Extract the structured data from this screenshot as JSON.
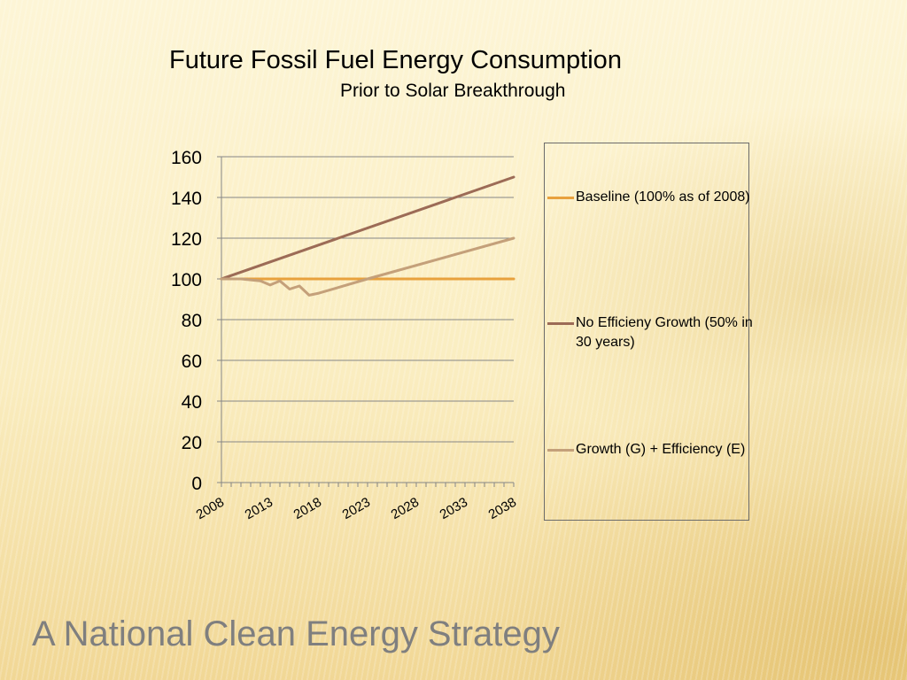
{
  "slide": {
    "footer_title": "A National Clean Energy Strategy"
  },
  "colors": {
    "baseline": "#e8a13d",
    "no_efficiency": "#9c6b56",
    "growth_efficiency": "#c4a07a",
    "gridline": "#868686",
    "axis": "#868686"
  },
  "chart_data": {
    "type": "line",
    "title": "Future Fossil Fuel Energy Consumption",
    "subtitle": "Prior to Solar Breakthrough",
    "xlabel": "",
    "ylabel": "",
    "xlim": [
      2008,
      2038
    ],
    "ylim": [
      0,
      160
    ],
    "x_ticks": [
      "2008",
      "2013",
      "2018",
      "2023",
      "2028",
      "2033",
      "2038"
    ],
    "y_ticks": [
      "0",
      "20",
      "40",
      "60",
      "80",
      "100",
      "120",
      "140",
      "160"
    ],
    "grid": "horizontal",
    "legend_position": "right",
    "series": [
      {
        "name": "Baseline (100% as of 2008)",
        "x": [
          2008,
          2038
        ],
        "values": [
          100,
          100
        ]
      },
      {
        "name": "No Efficieny Growth (50% in 30 years)",
        "x": [
          2008,
          2038
        ],
        "values": [
          100,
          150
        ]
      },
      {
        "name": "Growth (G) + Efficiency (E)",
        "x": [
          2008,
          2009,
          2010,
          2011,
          2012,
          2013,
          2014,
          2015,
          2016,
          2017,
          2018,
          2023,
          2038
        ],
        "values": [
          100,
          100,
          100,
          99.5,
          99,
          97,
          99,
          95,
          96.5,
          92,
          93,
          100,
          120
        ]
      }
    ]
  }
}
